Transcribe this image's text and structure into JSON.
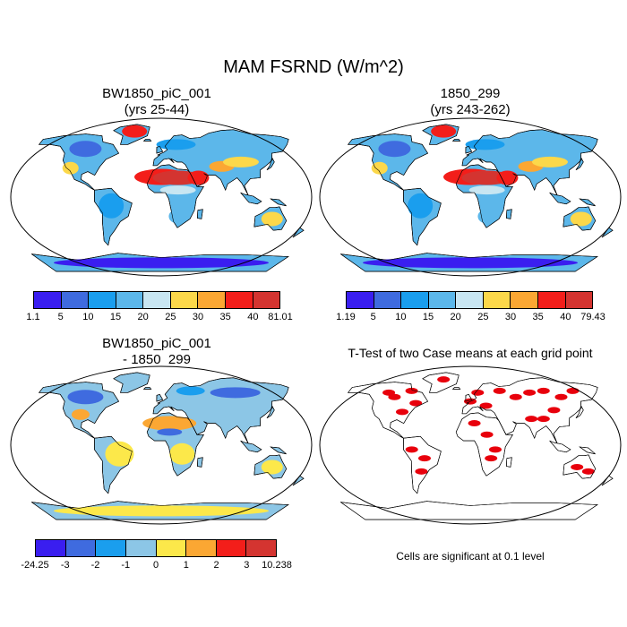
{
  "title": "MAM FSRND (W/m^2)",
  "panels": {
    "p1": {
      "line1": "BW1850_piC_001",
      "line2": "(yrs 25-44)"
    },
    "p2": {
      "line1": "1850_299",
      "line2": "(yrs 243-262)"
    },
    "p3": {
      "line1": "BW1850_piC_001",
      "line2": "- 1850_299"
    },
    "p4": {
      "line1": "T-Test of two Case means at each grid point",
      "line2": ""
    }
  },
  "colorbars": {
    "cb1": {
      "colors": [
        "#3a1ef0",
        "#3f6bdf",
        "#1a9eee",
        "#5cb7ea",
        "#c8e6f2",
        "#fcd84a",
        "#fba733",
        "#f31e1a",
        "#d43430"
      ],
      "ticks": [
        "1.1",
        "5",
        "10",
        "15",
        "20",
        "25",
        "30",
        "35",
        "40",
        "81.01"
      ]
    },
    "cb2": {
      "colors": [
        "#3a1ef0",
        "#3f6bdf",
        "#1a9eee",
        "#5cb7ea",
        "#c8e6f2",
        "#fcd84a",
        "#fba733",
        "#f31e1a",
        "#d43430"
      ],
      "ticks": [
        "1.19",
        "5",
        "10",
        "15",
        "20",
        "25",
        "30",
        "35",
        "40",
        "79.43"
      ]
    },
    "cb3": {
      "colors": [
        "#3a1ef0",
        "#3f6bdf",
        "#1a9eee",
        "#8cc6e6",
        "#fce84a",
        "#fba733",
        "#f31e1a",
        "#d43430"
      ],
      "ticks": [
        "-24.25",
        "-3",
        "-2",
        "-1",
        "0",
        "1",
        "2",
        "3",
        "10.238"
      ]
    }
  },
  "note": "Cells are significant at 0.1 level",
  "colors": {
    "land_base_abs": "#5cb7ea",
    "land_base_diff": "#8cc6e6",
    "signif": "#e8000c",
    "ocean": "#ffffff"
  }
}
